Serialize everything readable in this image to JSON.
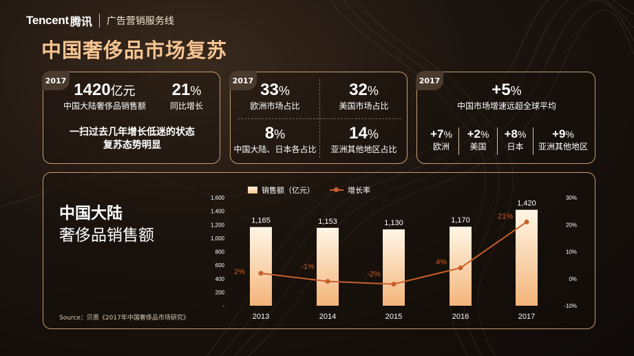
{
  "header": {
    "brand": "Tencent",
    "brand_cn": "腾讯",
    "subtitle": "广告营销服务线"
  },
  "page_title": "中国奢侈品市场复苏",
  "card1": {
    "year": "2017",
    "sales_value": "1420",
    "sales_unit": "亿元",
    "sales_label": "中国大陆奢侈品销售额",
    "growth_value": "21",
    "growth_unit": "%",
    "growth_label": "同比增长",
    "note_line1": "一扫过去几年增长低迷的状态",
    "note_line2": "复苏态势明显"
  },
  "card2": {
    "year": "2017",
    "items": [
      {
        "value": "33",
        "unit": "%",
        "label": "欧洲市场占比"
      },
      {
        "value": "32",
        "unit": "%",
        "label": "美国市场占比"
      },
      {
        "value": "8",
        "unit": "%",
        "label": "中国大陆、日本各占比"
      },
      {
        "value": "14",
        "unit": "%",
        "label": "亚洲其他地区占比"
      }
    ]
  },
  "card3": {
    "year": "2017",
    "main_value": "+5",
    "main_unit": "%",
    "main_label": "中国市场增速远超全球平均",
    "regions": [
      {
        "value": "+7",
        "unit": "%",
        "label": "欧洲"
      },
      {
        "value": "+2",
        "unit": "%",
        "label": "美国"
      },
      {
        "value": "+8",
        "unit": "%",
        "label": "日本"
      },
      {
        "value": "+9",
        "unit": "%",
        "label": "亚洲其他地区"
      }
    ]
  },
  "chart_section": {
    "title_line1": "中国大陆",
    "title_line2": "奢侈品销售额",
    "source": "Source：贝恩《2017年中国奢侈品市场研究》"
  },
  "chart_data": {
    "type": "bar",
    "categories": [
      "2013",
      "2014",
      "2015",
      "2016",
      "2017"
    ],
    "series": [
      {
        "name": "销售额（亿元）",
        "type": "bar",
        "axis": "left",
        "values": [
          1165,
          1153,
          1130,
          1170,
          1420
        ],
        "labels": [
          "1,165",
          "1,153",
          "1,130",
          "1,170",
          "1,420"
        ],
        "color": "#f6c592"
      },
      {
        "name": "增长率",
        "type": "line",
        "axis": "right",
        "values": [
          2,
          -1,
          -2,
          4,
          21
        ],
        "labels": [
          "2%",
          "-1%",
          "-2%",
          "4%",
          "21%"
        ],
        "color": "#c8602a"
      }
    ],
    "y_left": {
      "ylim": [
        0,
        1600
      ],
      "ticks": [
        "-",
        "200",
        "400",
        "600",
        "800",
        "1,000",
        "1,200",
        "1,400",
        "1,600"
      ]
    },
    "y_right": {
      "ylim": [
        -10,
        30
      ],
      "ticks": [
        "-10%",
        "0%",
        "10%",
        "20%",
        "30%"
      ]
    },
    "legend_position": "top",
    "grid": false
  },
  "colors": {
    "accent": "#f6c592",
    "line": "#c8602a",
    "border": "#c79f72"
  }
}
